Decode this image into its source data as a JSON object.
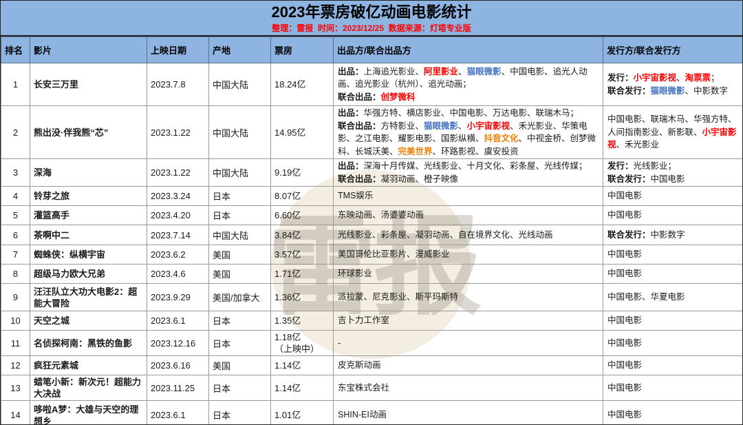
{
  "page_title": "2023年票房破亿动画电影统计",
  "subtitle": "整理：雷报  时间：2023/12/25  数据来源：灯塔专业版",
  "watermark": "雷报",
  "colors": {
    "header_blue": "#8EB4E2",
    "red": "#FF0000",
    "blue": "#4472C4",
    "orange": "#F07D00"
  },
  "columns": [
    "排名",
    "影片",
    "上映日期",
    "产地",
    "票房",
    "出品方/联合出品方",
    "发行方/联合发行方"
  ],
  "rows": [
    {
      "rank": "1",
      "title": "长安三万里",
      "date": "2023.7.8",
      "region": "中国大陆",
      "boxoffice": "18.24亿",
      "producers": [
        [
          {
            "t": "出品：",
            "b": true
          },
          {
            "t": "上海追光影业、"
          },
          {
            "t": "阿里影业",
            "c": "red"
          },
          {
            "t": "、"
          },
          {
            "t": "猫眼微影",
            "c": "blue"
          },
          {
            "t": "、中国电影、追光人动画、追光影业（杭州）、追光动画；"
          }
        ],
        [
          {
            "t": "联合出品：",
            "b": true
          },
          {
            "t": "创梦微科",
            "c": "red"
          }
        ]
      ],
      "distributors": [
        [
          {
            "t": "发行：",
            "b": true
          },
          {
            "t": "小宇宙影视",
            "c": "red"
          },
          {
            "t": "、"
          },
          {
            "t": "淘票票",
            "c": "red"
          },
          {
            "t": "；"
          }
        ],
        [
          {
            "t": "联合发行：",
            "b": true
          },
          {
            "t": "猫眼微影",
            "c": "blue"
          },
          {
            "t": "、中影数字"
          }
        ]
      ]
    },
    {
      "rank": "2",
      "title": "熊出没·伴我熊“芯”",
      "date": "2023.1.22",
      "region": "中国大陆",
      "boxoffice": "14.95亿",
      "producers": [
        [
          {
            "t": "出品：",
            "b": true
          },
          {
            "t": "华强方特、横店影业、中国电影、万达电影、联瑞木马；"
          }
        ],
        [
          {
            "t": "联合出品：",
            "b": true
          },
          {
            "t": "方特影业、"
          },
          {
            "t": "猫眼微影",
            "c": "blue"
          },
          {
            "t": "、"
          },
          {
            "t": "小宇宙影视",
            "c": "red"
          },
          {
            "t": "、禾光影业、华策电影、之江电影、耀影电影、国影纵横、"
          },
          {
            "t": "抖音文化",
            "c": "orange"
          },
          {
            "t": "、中视金桥、创梦微科、长城沃美、"
          },
          {
            "t": "完美世界",
            "c": "orange"
          },
          {
            "t": "、环路影视、虞安投资"
          }
        ]
      ],
      "distributors": [
        [
          {
            "t": "中国电影、联瑞木马、华强方特、人间指南影业、新影联、"
          },
          {
            "t": "小宇宙影视",
            "c": "red"
          },
          {
            "t": "、禾光影业"
          }
        ]
      ]
    },
    {
      "rank": "3",
      "title": "深海",
      "date": "2023.1.22",
      "region": "中国大陆",
      "boxoffice": "9.19亿",
      "producers": [
        [
          {
            "t": "出品：",
            "b": true
          },
          {
            "t": "深海十月传媒、光线影业、十月文化、彩条屋、光线传媒；"
          }
        ],
        [
          {
            "t": "联合出品：",
            "b": true
          },
          {
            "t": "凝羽动画、橙子映像"
          }
        ]
      ],
      "distributors": [
        [
          {
            "t": "发行：",
            "b": true
          },
          {
            "t": "光线影业；"
          }
        ],
        [
          {
            "t": "联合发行：",
            "b": true
          },
          {
            "t": "中国电影"
          }
        ]
      ]
    },
    {
      "rank": "4",
      "title": "铃芽之旅",
      "date": "2023.3.24",
      "region": "日本",
      "boxoffice": "8.07亿",
      "producers": [
        [
          {
            "t": "TMS娱乐"
          }
        ]
      ],
      "distributors": [
        [
          {
            "t": "中国电影"
          }
        ]
      ]
    },
    {
      "rank": "5",
      "title": "灌篮高手",
      "date": "2023.4.20",
      "region": "日本",
      "boxoffice": "6.60亿",
      "producers": [
        [
          {
            "t": "东映动画、汤婆婆动画"
          }
        ]
      ],
      "distributors": [
        [
          {
            "t": "中国电影"
          }
        ]
      ]
    },
    {
      "rank": "6",
      "title": "茶啊中二",
      "date": "2023.7.14",
      "region": "中国大陆",
      "boxoffice": "3.84亿",
      "producers": [
        [
          {
            "t": "光线影业、彩条屋、凝羽动画、自在境界文化、光线动画"
          }
        ]
      ],
      "distributors": [
        [
          {
            "t": "联合发行：",
            "b": true
          },
          {
            "t": "中影数字"
          }
        ]
      ]
    },
    {
      "rank": "7",
      "title": "蜘蛛侠：纵横宇宙",
      "date": "2023.6.2",
      "region": "美国",
      "boxoffice": "3.57亿",
      "producers": [
        [
          {
            "t": "美国哥伦比亚影片、漫威影业"
          }
        ]
      ],
      "distributors": [
        [
          {
            "t": "中国电影"
          }
        ]
      ]
    },
    {
      "rank": "8",
      "title": "超级马力欧大兄弟",
      "date": "2023.4.6",
      "region": "美国",
      "boxoffice": "1.71亿",
      "producers": [
        [
          {
            "t": "环球影业"
          }
        ]
      ],
      "distributors": [
        [
          {
            "t": "中国电影"
          }
        ]
      ]
    },
    {
      "rank": "9",
      "title": "汪汪队立大功大电影2：超能大冒险",
      "date": "2023.9.29",
      "region": "美国/加拿大",
      "boxoffice": "1.36亿",
      "producers": [
        [
          {
            "t": "派拉蒙、尼克影业、斯平玛斯特"
          }
        ]
      ],
      "distributors": [
        [
          {
            "t": "中国电影、华夏电影"
          }
        ]
      ]
    },
    {
      "rank": "10",
      "title": "天空之城",
      "date": "2023.6.1",
      "region": "日本",
      "boxoffice": "1.35亿",
      "producers": [
        [
          {
            "t": "吉卜力工作室"
          }
        ]
      ],
      "distributors": [
        [
          {
            "t": "中国电影"
          }
        ]
      ]
    },
    {
      "rank": "11",
      "title": "名侦探柯南：黑铁的鱼影",
      "date": "2023.12.16",
      "region": "日本",
      "boxoffice": "1.18亿\n（上映中）",
      "producers": [
        [
          {
            "t": "-"
          }
        ]
      ],
      "distributors": [
        [
          {
            "t": "中国电影"
          }
        ]
      ]
    },
    {
      "rank": "12",
      "title": "疯狂元素城",
      "date": "2023.6.16",
      "region": "美国",
      "boxoffice": "1.14亿",
      "producers": [
        [
          {
            "t": "皮克斯动画"
          }
        ]
      ],
      "distributors": [
        [
          {
            "t": "中国电影"
          }
        ]
      ]
    },
    {
      "rank": "13",
      "title": "蜡笔小新：新次元！超能力大决战",
      "date": "2023.11.25",
      "region": "日本",
      "boxoffice": "1.14亿",
      "producers": [
        [
          {
            "t": "东宝株式会社"
          }
        ]
      ],
      "distributors": [
        [
          {
            "t": "中国电影"
          }
        ]
      ]
    },
    {
      "rank": "14",
      "title": "哆啦A梦：大雄与天空的理想乡",
      "date": "2023.6.1",
      "region": "日本",
      "boxoffice": "1.01亿",
      "producers": [
        [
          {
            "t": "SHIN-EI动画"
          }
        ]
      ],
      "distributors": [
        [
          {
            "t": "中国电影"
          }
        ]
      ]
    }
  ],
  "chart_data": {
    "type": "table",
    "title": "2023年票房破亿动画电影统计",
    "subtitle": "整理：雷报  时间：2023/12/25  数据来源：灯塔专业版",
    "columns": [
      "排名",
      "影片",
      "上映日期",
      "产地",
      "票房",
      "出品方/联合出品方",
      "发行方/联合发行方"
    ],
    "categories": [
      "长安三万里",
      "熊出没·伴我熊“芯”",
      "深海",
      "铃芽之旅",
      "灌篮高手",
      "茶啊中二",
      "蜘蛛侠：纵横宇宙",
      "超级马力欧大兄弟",
      "汪汪队立大功大电影2：超能大冒险",
      "天空之城",
      "名侦探柯南：黑铁的鱼影",
      "疯狂元素城",
      "蜡笔小新：新次元！超能力大决战",
      "哆啦A梦：大雄与天空的理想乡"
    ],
    "box_office_yi": [
      18.24,
      14.95,
      9.19,
      8.07,
      6.6,
      3.84,
      3.57,
      1.71,
      1.36,
      1.35,
      1.18,
      1.14,
      1.14,
      1.01
    ],
    "release_dates": [
      "2023.7.8",
      "2023.1.22",
      "2023.1.22",
      "2023.3.24",
      "2023.4.20",
      "2023.7.14",
      "2023.6.2",
      "2023.4.6",
      "2023.9.29",
      "2023.6.1",
      "2023.12.16",
      "2023.6.16",
      "2023.11.25",
      "2023.6.1"
    ],
    "regions": [
      "中国大陆",
      "中国大陆",
      "中国大陆",
      "日本",
      "日本",
      "中国大陆",
      "美国",
      "美国",
      "美国/加拿大",
      "日本",
      "日本",
      "美国",
      "日本",
      "日本"
    ],
    "notes": [
      "排名11票房标注（上映中）"
    ]
  }
}
